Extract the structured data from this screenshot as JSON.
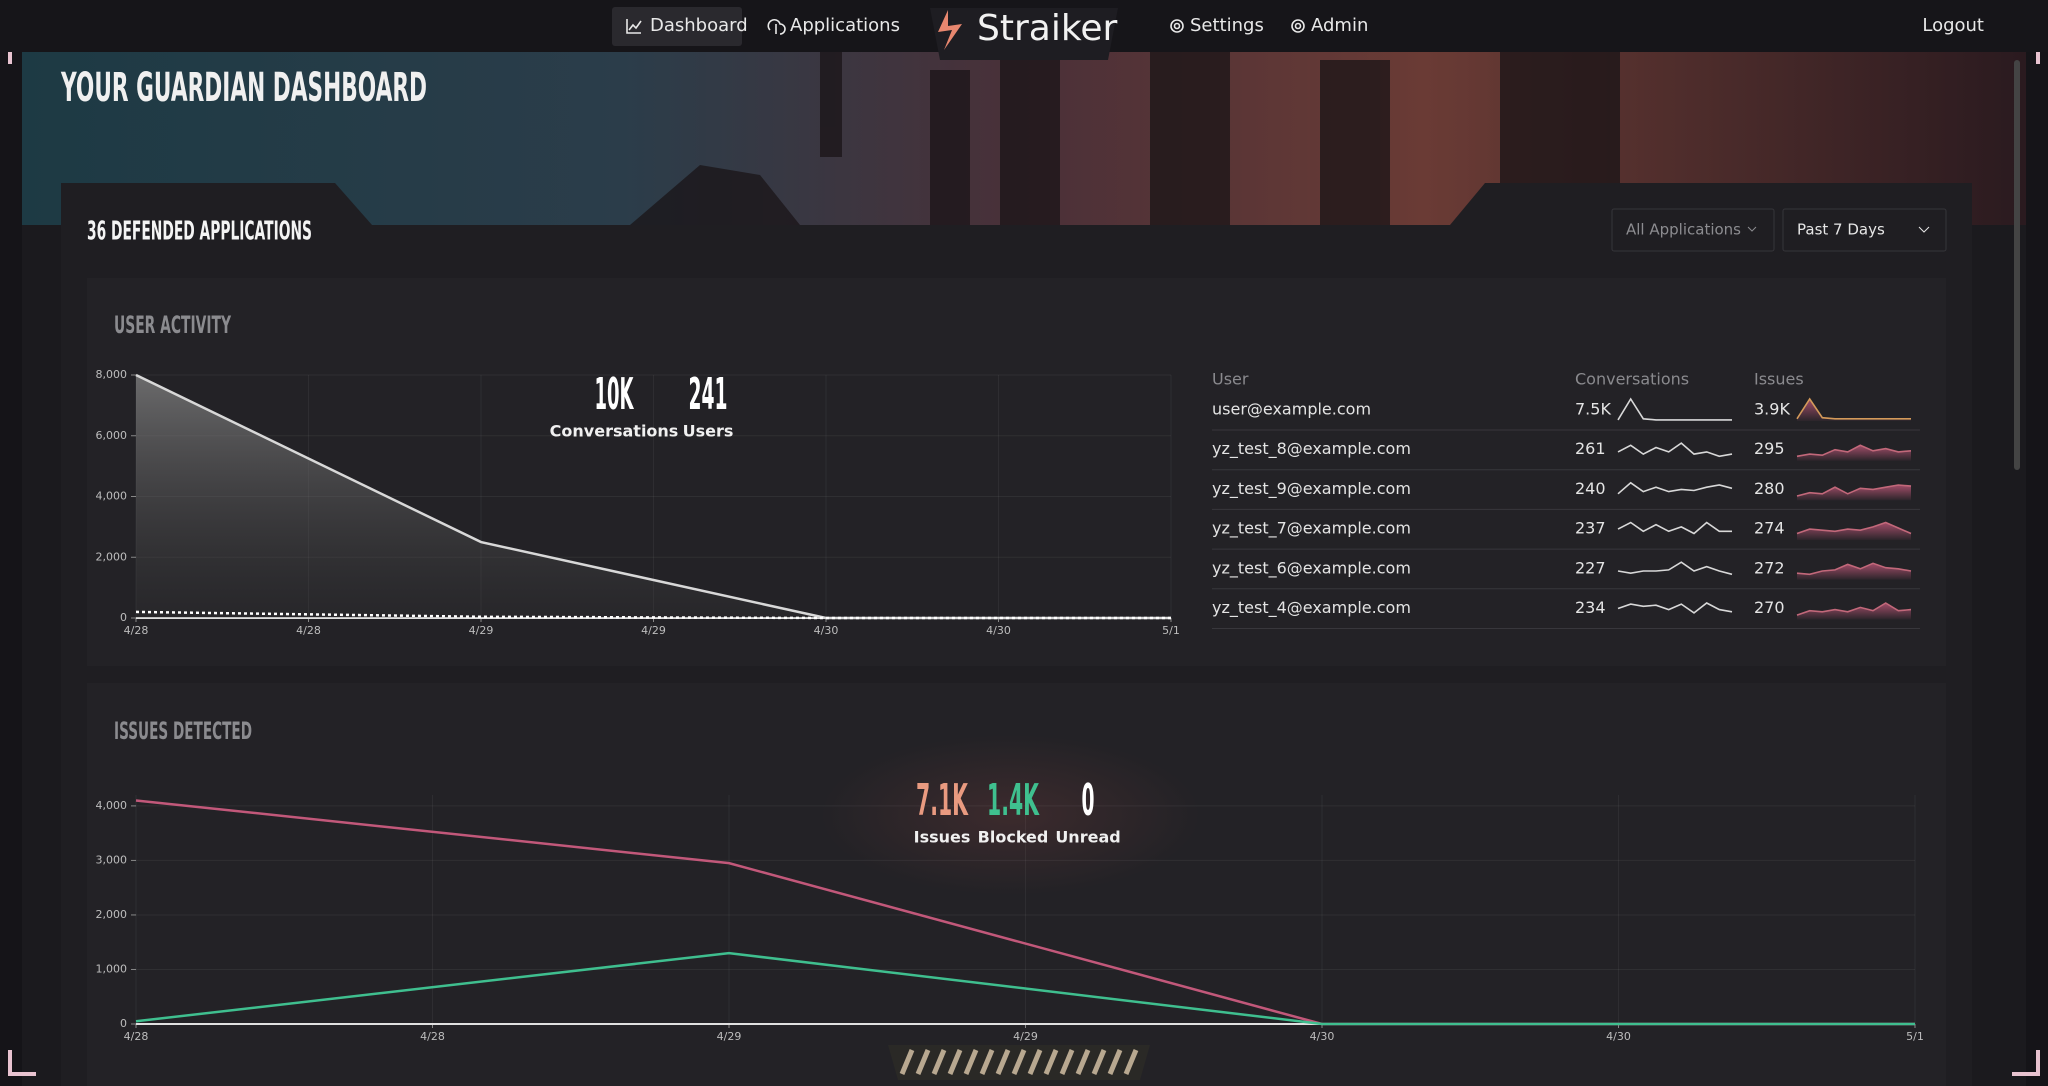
{
  "nav": {
    "items": [
      "Dashboard",
      "Applications",
      "Settings",
      "Admin"
    ],
    "logo": "Straiker",
    "logout": "Logout"
  },
  "header": {
    "title": "YOUR GUARDIAN DASHBOARD"
  },
  "section": {
    "title": "36 DEFENDED APPLICATIONS",
    "filters": [
      "All Applications",
      "Past 7 Days"
    ]
  },
  "user_activity": {
    "title": "USER ACTIVITY",
    "stats": [
      {
        "value": "10K",
        "label": "Conversations",
        "color": "#ffffff"
      },
      {
        "value": "241",
        "label": "Users",
        "color": "#ffffff"
      }
    ],
    "chart": {
      "type": "line",
      "x": [
        0,
        1,
        2,
        3
      ],
      "xlim": [
        0,
        3
      ],
      "xticks": [
        {
          "value": 0,
          "label": "4/28"
        },
        {
          "value": 0.5,
          "label": "4/28"
        },
        {
          "value": 1,
          "label": "4/29"
        },
        {
          "value": 1.5,
          "label": "4/29"
        },
        {
          "value": 2,
          "label": "4/30"
        },
        {
          "value": 2.5,
          "label": "4/30"
        },
        {
          "value": 3,
          "label": "5/1"
        }
      ],
      "ylim": [
        0,
        8000
      ],
      "yticks": [
        0,
        {
          "value": 2000,
          "label": "2,000"
        },
        {
          "value": 4000,
          "label": "4,000"
        },
        {
          "value": 6000,
          "label": "6,000"
        },
        {
          "value": 8000,
          "label": "8,000"
        }
      ],
      "grid": true,
      "series": [
        {
          "name": "Conversations",
          "color": "#d8d8d8",
          "values": [
            8000,
            2500,
            0,
            0
          ],
          "area": true
        },
        {
          "name": "Users",
          "color": "#ffffff",
          "values": [
            200,
            40,
            0,
            0
          ],
          "dashed": true
        }
      ]
    }
  },
  "table": {
    "headers": [
      "User",
      "Conversations",
      "Issues"
    ],
    "rows": [
      {
        "user": "user@example.com",
        "conversations": "7.5K",
        "issues": "3.9K",
        "conv_trend": [
          5,
          100,
          10,
          5,
          5,
          5,
          5,
          5,
          5,
          5
        ],
        "issue_trend": [
          10,
          100,
          15,
          10,
          10,
          10,
          10,
          10,
          10,
          10
        ]
      },
      {
        "user": "yz_test_8@example.com",
        "conversations": "261",
        "issues": "295",
        "conv_trend": [
          40,
          70,
          30,
          60,
          40,
          80,
          30,
          40,
          20,
          30
        ],
        "issue_trend": [
          20,
          30,
          25,
          50,
          40,
          70,
          45,
          55,
          40,
          45
        ]
      },
      {
        "user": "yz_test_9@example.com",
        "conversations": "240",
        "issues": "280",
        "conv_trend": [
          30,
          80,
          40,
          60,
          40,
          50,
          45,
          60,
          70,
          55
        ],
        "issue_trend": [
          20,
          35,
          30,
          60,
          30,
          55,
          50,
          60,
          70,
          65
        ]
      },
      {
        "user": "yz_test_7@example.com",
        "conversations": "237",
        "issues": "274",
        "conv_trend": [
          50,
          80,
          40,
          70,
          40,
          60,
          30,
          80,
          40,
          40
        ],
        "issue_trend": [
          30,
          50,
          45,
          40,
          50,
          45,
          60,
          80,
          55,
          30
        ]
      },
      {
        "user": "yz_test_6@example.com",
        "conversations": "227",
        "issues": "272",
        "conv_trend": [
          40,
          30,
          40,
          40,
          45,
          80,
          40,
          60,
          40,
          25
        ],
        "issue_trend": [
          30,
          25,
          40,
          45,
          70,
          50,
          75,
          55,
          50,
          40
        ]
      },
      {
        "user": "yz_test_4@example.com",
        "conversations": "234",
        "issues": "270",
        "conv_trend": [
          50,
          70,
          60,
          65,
          45,
          70,
          30,
          75,
          45,
          35
        ],
        "issue_trend": [
          20,
          40,
          35,
          45,
          35,
          55,
          40,
          75,
          40,
          45
        ]
      }
    ]
  },
  "issues": {
    "title": "ISSUES DETECTED",
    "stats": [
      {
        "value": "7.1K",
        "label": "Issues",
        "color": "#e99a80"
      },
      {
        "value": "1.4K",
        "label": "Blocked",
        "color": "#3fc08f"
      },
      {
        "value": "0",
        "label": "Unread",
        "color": "#ffffff"
      }
    ],
    "chart": {
      "type": "line",
      "x": [
        0,
        1,
        2,
        3
      ],
      "xlim": [
        0,
        3
      ],
      "xticks": [
        {
          "value": 0,
          "label": "4/28"
        },
        {
          "value": 0.5,
          "label": "4/28"
        },
        {
          "value": 1,
          "label": "4/29"
        },
        {
          "value": 1.5,
          "label": "4/29"
        },
        {
          "value": 2,
          "label": "4/30"
        },
        {
          "value": 2.5,
          "label": "4/30"
        },
        {
          "value": 3,
          "label": "5/1"
        }
      ],
      "ylim": [
        0,
        4200
      ],
      "yticks": [
        0,
        {
          "value": 1000,
          "label": "1,000"
        },
        {
          "value": 2000,
          "label": "2,000"
        },
        {
          "value": 3000,
          "label": "3,000"
        },
        {
          "value": 4000,
          "label": "4,000"
        }
      ],
      "grid": true,
      "series": [
        {
          "name": "Issues",
          "color": "#c2587a",
          "values": [
            4100,
            2950,
            0,
            0
          ]
        },
        {
          "name": "Blocked",
          "color": "#3fbf8f",
          "values": [
            50,
            1300,
            0,
            0
          ]
        }
      ]
    }
  }
}
